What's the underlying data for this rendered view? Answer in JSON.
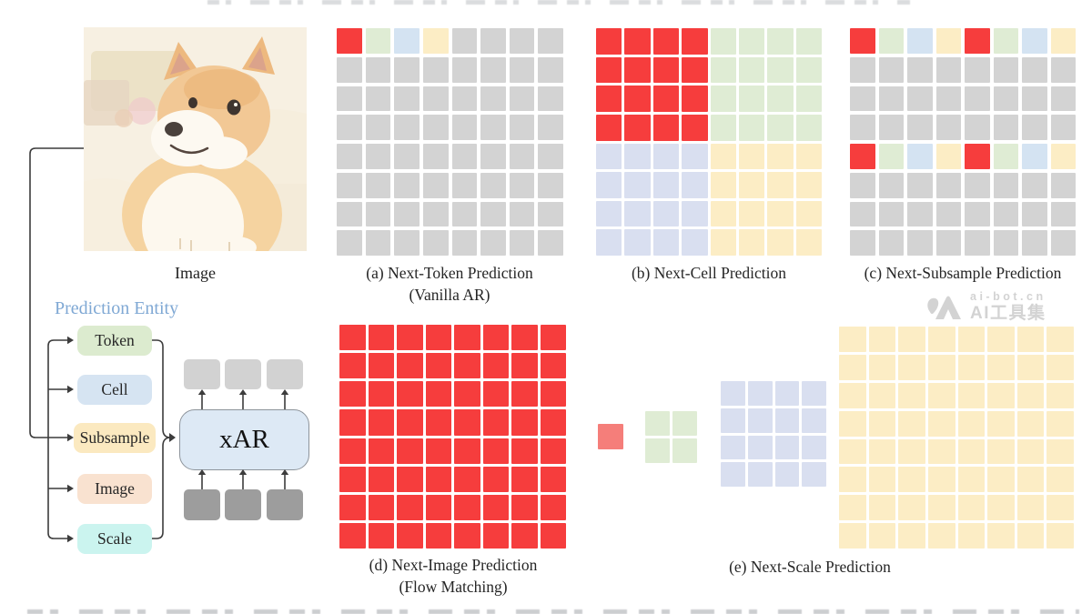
{
  "figure": {
    "image_label": "Image",
    "prediction_entity": {
      "title": "Prediction Entity",
      "items": [
        {
          "label": "Token",
          "color": "#dcebcf"
        },
        {
          "label": "Cell",
          "color": "#d6e4f2"
        },
        {
          "label": "Subsample",
          "color": "#fbe9c0"
        },
        {
          "label": "Image",
          "color": "#f9e2d0"
        },
        {
          "label": "Scale",
          "color": "#cbf4ef"
        }
      ]
    },
    "model": {
      "label": "xAR",
      "fill": "#dde9f5"
    },
    "panels": {
      "a": {
        "caption_line1": "(a) Next-Token Prediction",
        "caption_line2": "(Vanilla AR)"
      },
      "b": {
        "caption_line1": "(b) Next-Cell Prediction",
        "caption_line2": ""
      },
      "c": {
        "caption_line1": "(c) Next-Subsample Prediction",
        "caption_line2": ""
      },
      "d": {
        "caption_line1": "(d) Next-Image Prediction",
        "caption_line2": "(Flow Matching)"
      },
      "e": {
        "caption_line1": "(e) Next-Scale Prediction",
        "caption_line2": ""
      }
    }
  },
  "grids": {
    "a": {
      "rows": [
        "RGBY____",
        "________",
        "________",
        "________",
        "________",
        "________",
        "________",
        "________"
      ]
    },
    "b": {
      "rows": [
        "RRRRGGGG",
        "RRRRGGGG",
        "RRRRGGGG",
        "RRRRGGGG",
        "LLLLYYYY",
        "LLLLYYYY",
        "LLLLYYYY",
        "LLLLYYYY"
      ]
    },
    "c": {
      "rows": [
        "RGBYRGBY",
        "________",
        "________",
        "________",
        "RGBYRGBY",
        "________",
        "________",
        "________"
      ]
    },
    "d": {
      "rows": [
        "RRRRRRRR",
        "RRRRRRRR",
        "RRRRRRRR",
        "RRRRRRRR",
        "RRRRRRRR",
        "RRRRRRRR",
        "RRRRRRRR",
        "RRRRRRRR"
      ]
    },
    "e1": {
      "rows": [
        "S"
      ]
    },
    "e2": {
      "rows": [
        "GG",
        "GG"
      ]
    },
    "e3": {
      "rows": [
        "LLLL",
        "LLLL",
        "LLLL",
        "LLLL"
      ]
    },
    "e4": {
      "rows": [
        "YYYYYYYY",
        "YYYYYYYY",
        "YYYYYYYY",
        "YYYYYYYY",
        "YYYYYYYY",
        "YYYYYYYY",
        "YYYYYYYY",
        "YYYYYYYY"
      ]
    }
  },
  "colors": {
    "cells": {
      "R": "#f63d3d",
      "G": "#dfecd4",
      "B": "#d4e3f2",
      "Y": "#fcedc5",
      "_": "#d3d3d3",
      "L": "#d9dff0",
      "S": "#f57e7a"
    },
    "entity_title": "#7fa8d4",
    "caption_text": "#262626",
    "arrow": "#3c3c3c",
    "xar_fill": "#dde9f5",
    "top_unit_box": "#d2d2d2",
    "bottom_unit_box": "#9d9d9d",
    "watermark": "#d3d3d3"
  },
  "watermark": {
    "site": "ai-bot.cn",
    "name": "AI工具集"
  }
}
